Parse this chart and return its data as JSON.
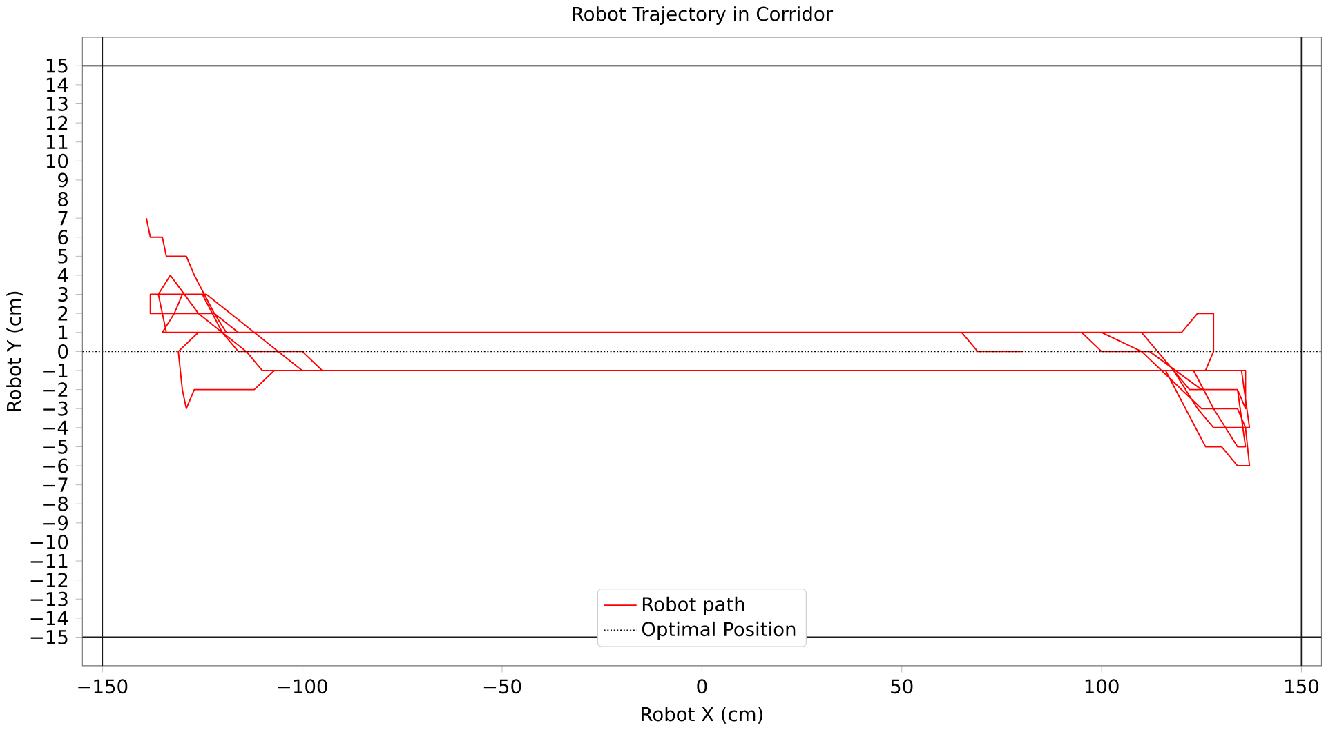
{
  "chart_data": {
    "type": "line",
    "title": "Robot Trajectory in Corridor",
    "xlabel": "Robot X (cm)",
    "ylabel": "Robot Y (cm)",
    "xlim": [
      -155,
      155
    ],
    "ylim": [
      -16.5,
      16.5
    ],
    "xticks": [
      {
        "value": -150,
        "label": "−150"
      },
      {
        "value": -100,
        "label": "−100"
      },
      {
        "value": -50,
        "label": "−50"
      },
      0,
      50,
      100,
      150
    ],
    "yticks": [
      {
        "value": -15,
        "label": "−15"
      },
      {
        "value": -14,
        "label": "−14"
      },
      {
        "value": -13,
        "label": "−13"
      },
      {
        "value": -12,
        "label": "−12"
      },
      {
        "value": -11,
        "label": "−11"
      },
      {
        "value": -10,
        "label": "−10"
      },
      {
        "value": -9,
        "label": "−9"
      },
      {
        "value": -8,
        "label": "−8"
      },
      {
        "value": -7,
        "label": "−7"
      },
      {
        "value": -6,
        "label": "−6"
      },
      {
        "value": -5,
        "label": "−5"
      },
      {
        "value": -4,
        "label": "−4"
      },
      {
        "value": -3,
        "label": "−3"
      },
      {
        "value": -2,
        "label": "−2"
      },
      {
        "value": -1,
        "label": "−1"
      },
      0,
      1,
      2,
      3,
      4,
      5,
      6,
      7,
      8,
      9,
      10,
      11,
      12,
      13,
      14,
      15
    ],
    "ref_lines": [
      {
        "axis": "y",
        "value": 15,
        "color": "#1a1a1a",
        "line_style": "solid"
      },
      {
        "axis": "y",
        "value": -15,
        "color": "#1a1a1a",
        "line_style": "solid"
      },
      {
        "axis": "x",
        "value": -150,
        "color": "#1a1a1a",
        "line_style": "solid"
      },
      {
        "axis": "x",
        "value": 150,
        "color": "#1a1a1a",
        "line_style": "solid"
      }
    ],
    "grid": false,
    "legend": "bottom",
    "marker": "none",
    "series": [
      {
        "name": "Robot path",
        "color": "#ff0000",
        "line_style": "solid",
        "x": [
          -139,
          -138,
          -135,
          -134,
          -129,
          -127,
          -122,
          -119,
          100,
          110,
          125,
          134,
          136,
          137,
          134,
          130,
          126,
          121,
          116,
          -100,
          -106,
          -124,
          -130,
          -132,
          -135,
          95,
          100,
          112,
          125,
          134,
          136,
          136,
          -95,
          -100,
          -116,
          -120,
          -125,
          -138,
          -138,
          -122,
          -116,
          120,
          124,
          128,
          128,
          126,
          135,
          137,
          128,
          124,
          118,
          -107,
          -112,
          -127,
          -129,
          -130,
          -131,
          -126,
          110,
          118,
          122,
          134,
          136,
          134,
          128,
          123,
          -110,
          -114,
          -126,
          -133,
          -136,
          -134,
          65,
          69,
          80
        ],
        "values": [
          7,
          6,
          6,
          5,
          5,
          4,
          2,
          1,
          1,
          0,
          -3,
          -3,
          -4,
          -6,
          -6,
          -5,
          -5,
          -3,
          -1,
          -1,
          0,
          3,
          3,
          2,
          1,
          1,
          0,
          0,
          -2,
          -2,
          -3,
          -1,
          -1,
          0,
          0,
          1,
          3,
          3,
          2,
          2,
          1,
          1,
          2,
          2,
          0,
          -1,
          -1,
          -4,
          -4,
          -3,
          -1,
          -1,
          -2,
          -2,
          -3,
          -2,
          0,
          1,
          1,
          -1,
          -2,
          -2,
          -5,
          -5,
          -3,
          -1,
          -1,
          0,
          2,
          4,
          3,
          1,
          1,
          0,
          0
        ]
      },
      {
        "name": "Optimal Position",
        "color": "#000000",
        "line_style": "dotted",
        "x": [
          -155,
          155
        ],
        "values": [
          0,
          0
        ]
      }
    ]
  }
}
